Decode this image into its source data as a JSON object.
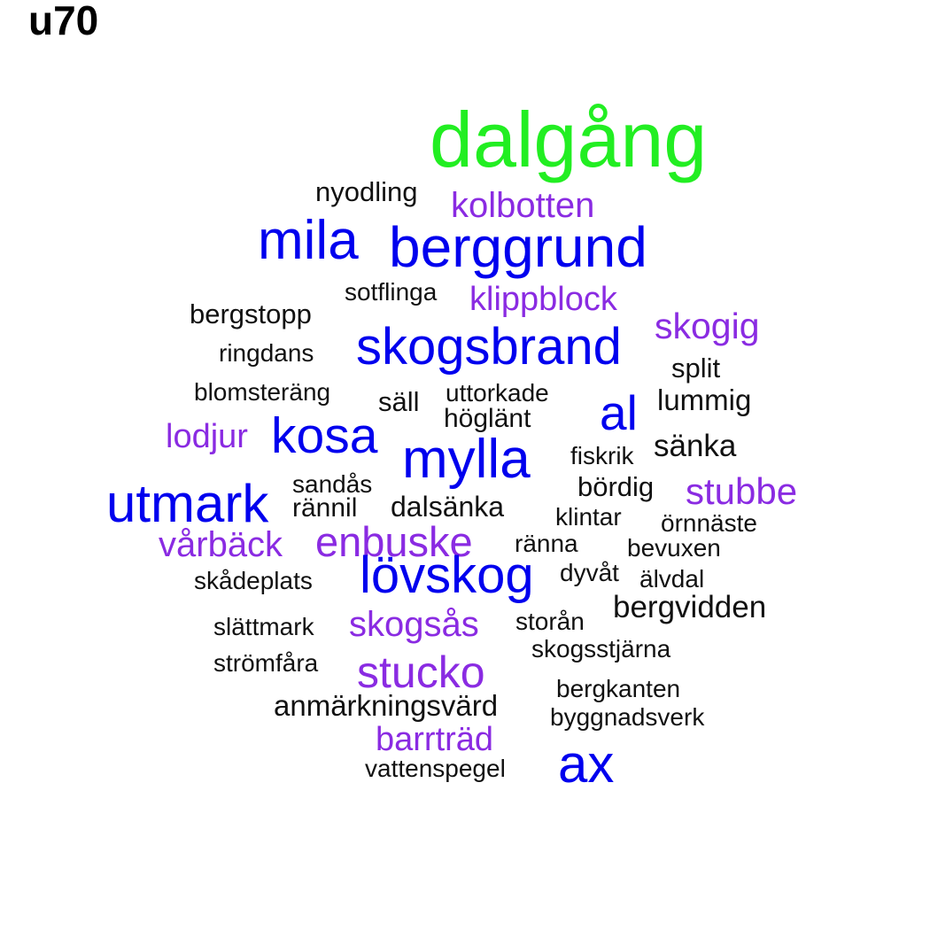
{
  "title": "u70",
  "colors": {
    "highlight": "#22ee22",
    "blue": "#0000ee",
    "purple": "#8a2be2",
    "black": "#111111"
  },
  "words": [
    {
      "text": "dalgång",
      "tier": "highlight"
    },
    {
      "text": "nyodling",
      "tier": "black"
    },
    {
      "text": "kolbotten",
      "tier": "purple"
    },
    {
      "text": "mila",
      "tier": "blue"
    },
    {
      "text": "berggrund",
      "tier": "blue"
    },
    {
      "text": "sotflinga",
      "tier": "black"
    },
    {
      "text": "klippblock",
      "tier": "purple"
    },
    {
      "text": "bergstopp",
      "tier": "black"
    },
    {
      "text": "skogig",
      "tier": "purple"
    },
    {
      "text": "skogsbrand",
      "tier": "blue"
    },
    {
      "text": "ringdans",
      "tier": "black"
    },
    {
      "text": "split",
      "tier": "black"
    },
    {
      "text": "blomsteräng",
      "tier": "black"
    },
    {
      "text": "säll",
      "tier": "black"
    },
    {
      "text": "uttorkade",
      "tier": "black"
    },
    {
      "text": "lummig",
      "tier": "black"
    },
    {
      "text": "al",
      "tier": "blue"
    },
    {
      "text": "höglänt",
      "tier": "black"
    },
    {
      "text": "lodjur",
      "tier": "purple"
    },
    {
      "text": "kosa",
      "tier": "blue"
    },
    {
      "text": "sänka",
      "tier": "black"
    },
    {
      "text": "mylla",
      "tier": "blue"
    },
    {
      "text": "fiskrik",
      "tier": "black"
    },
    {
      "text": "sandås",
      "tier": "black"
    },
    {
      "text": "bördig",
      "tier": "black"
    },
    {
      "text": "stubbe",
      "tier": "purple"
    },
    {
      "text": "utmark",
      "tier": "blue"
    },
    {
      "text": "rännil",
      "tier": "black"
    },
    {
      "text": "dalsänka",
      "tier": "black"
    },
    {
      "text": "klintar",
      "tier": "black"
    },
    {
      "text": "örnnäste",
      "tier": "black"
    },
    {
      "text": "vårbäck",
      "tier": "purple"
    },
    {
      "text": "enbuske",
      "tier": "purple"
    },
    {
      "text": "ränna",
      "tier": "black"
    },
    {
      "text": "bevuxen",
      "tier": "black"
    },
    {
      "text": "lövskog",
      "tier": "blue"
    },
    {
      "text": "dyvåt",
      "tier": "black"
    },
    {
      "text": "skådeplats",
      "tier": "black"
    },
    {
      "text": "älvdal",
      "tier": "black"
    },
    {
      "text": "bergvidden",
      "tier": "black"
    },
    {
      "text": "slättmark",
      "tier": "black"
    },
    {
      "text": "skogsås",
      "tier": "purple"
    },
    {
      "text": "storån",
      "tier": "black"
    },
    {
      "text": "skogsstjärna",
      "tier": "black"
    },
    {
      "text": "strömfåra",
      "tier": "black"
    },
    {
      "text": "stucko",
      "tier": "purple"
    },
    {
      "text": "bergkanten",
      "tier": "black"
    },
    {
      "text": "anmärkningsvärd",
      "tier": "black"
    },
    {
      "text": "byggnadsverk",
      "tier": "black"
    },
    {
      "text": "barrträd",
      "tier": "purple"
    },
    {
      "text": "ax",
      "tier": "blue"
    },
    {
      "text": "vattenspegel",
      "tier": "black"
    }
  ]
}
